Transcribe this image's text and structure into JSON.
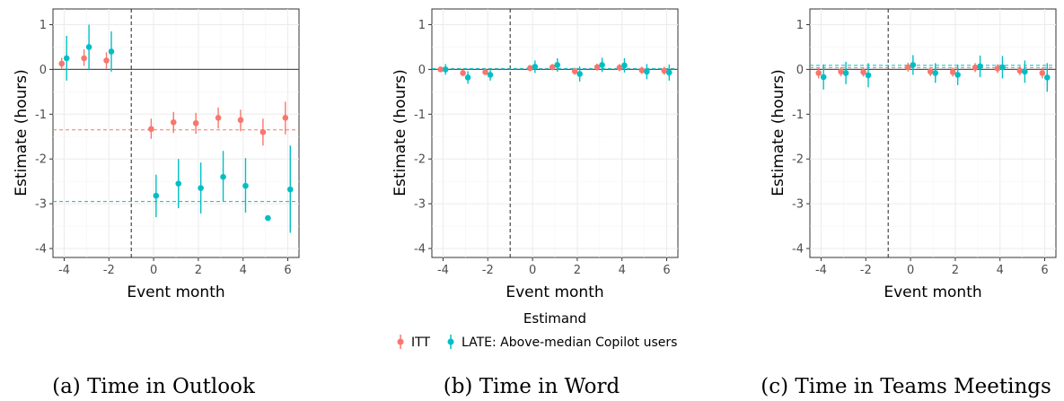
{
  "legend": {
    "title": "Estimand",
    "items": [
      {
        "label": "ITT",
        "color": "#F8766D"
      },
      {
        "label": "LATE: Above-median Copilot users",
        "color": "#00BFC4"
      }
    ]
  },
  "chart_data": [
    {
      "type": "scatter",
      "subtype": "event-study with 95% CI error bars",
      "caption": "(a) Time in Outlook",
      "xlabel": "Event month",
      "ylabel": "Estimate (hours)",
      "xlim": [
        -4.5,
        6.5
      ],
      "ylim": [
        -4.2,
        1.35
      ],
      "xticks": [
        -4,
        -2,
        0,
        2,
        4,
        6
      ],
      "xtick_labels": [
        "-4",
        "-2",
        "0",
        "2",
        "4",
        "6"
      ],
      "yticks": [
        1,
        0,
        -1,
        -2,
        -3,
        -4
      ],
      "ytick_labels": [
        "1",
        "0",
        "-1",
        "-2",
        "-3",
        "-4"
      ],
      "grid": true,
      "treatment_line_x": -1,
      "series": [
        {
          "name": "ITT",
          "color": "#F8766D",
          "mean_line": -1.35,
          "x": [
            -4,
            -3,
            -2,
            0,
            1,
            2,
            3,
            4,
            5,
            6
          ],
          "y": [
            0.13,
            0.25,
            0.2,
            -1.33,
            -1.18,
            -1.2,
            -1.08,
            -1.13,
            -1.4,
            -1.08
          ],
          "lo": [
            0.0,
            0.08,
            0.02,
            -1.55,
            -1.42,
            -1.44,
            -1.32,
            -1.38,
            -1.7,
            -1.45
          ],
          "hi": [
            0.26,
            0.45,
            0.38,
            -1.1,
            -0.95,
            -0.97,
            -0.85,
            -0.9,
            -1.1,
            -0.72
          ]
        },
        {
          "name": "LATE: Above-median Copilot users",
          "color": "#00BFC4",
          "mean_line": -2.95,
          "x": [
            -4,
            -3,
            -2,
            0,
            1,
            2,
            3,
            4,
            5,
            6
          ],
          "y": [
            0.25,
            0.5,
            0.4,
            -2.82,
            -2.55,
            -2.65,
            -2.4,
            -2.6,
            -3.32,
            -2.68
          ],
          "lo": [
            -0.25,
            0.0,
            -0.05,
            -3.3,
            -3.1,
            -3.22,
            -2.95,
            -3.2,
            -3.32,
            -3.65
          ],
          "hi": [
            0.75,
            1.0,
            0.85,
            -2.35,
            -2.0,
            -2.08,
            -1.82,
            -1.98,
            -3.32,
            -1.7
          ]
        }
      ]
    },
    {
      "type": "scatter",
      "subtype": "event-study with 95% CI error bars",
      "caption": "(b) Time in Word",
      "xlabel": "Event month",
      "ylabel": "Estimate (hours)",
      "xlim": [
        -4.5,
        6.5
      ],
      "ylim": [
        -4.2,
        1.35
      ],
      "xticks": [
        -4,
        -2,
        0,
        2,
        4,
        6
      ],
      "xtick_labels": [
        "-4",
        "-2",
        "0",
        "2",
        "4",
        "6"
      ],
      "yticks": [
        1,
        0,
        -1,
        -2,
        -3,
        -4
      ],
      "ytick_labels": [
        "1",
        "0",
        "-1",
        "-2",
        "-3",
        "-4"
      ],
      "grid": true,
      "treatment_line_x": -1,
      "series": [
        {
          "name": "ITT",
          "color": "#F8766D",
          "mean_line": 0.01,
          "x": [
            -4,
            -3,
            -2,
            0,
            1,
            2,
            3,
            4,
            5,
            6
          ],
          "y": [
            0.0,
            -0.08,
            -0.06,
            0.03,
            0.05,
            -0.04,
            0.05,
            0.04,
            -0.02,
            -0.03
          ],
          "lo": [
            -0.05,
            -0.15,
            -0.12,
            -0.04,
            -0.02,
            -0.12,
            -0.03,
            -0.04,
            -0.1,
            -0.12
          ],
          "hi": [
            0.05,
            -0.01,
            0.0,
            0.1,
            0.12,
            0.04,
            0.13,
            0.12,
            0.06,
            0.06
          ]
        },
        {
          "name": "LATE: Above-median Copilot users",
          "color": "#00BFC4",
          "mean_line": 0.02,
          "x": [
            -4,
            -3,
            -2,
            0,
            1,
            2,
            3,
            4,
            5,
            6
          ],
          "y": [
            0.0,
            -0.18,
            -0.12,
            0.06,
            0.1,
            -0.1,
            0.1,
            0.09,
            -0.05,
            -0.07
          ],
          "lo": [
            -0.12,
            -0.32,
            -0.25,
            -0.08,
            -0.05,
            -0.27,
            -0.06,
            -0.07,
            -0.22,
            -0.25
          ],
          "hi": [
            0.12,
            -0.04,
            0.01,
            0.2,
            0.25,
            0.07,
            0.26,
            0.25,
            0.12,
            0.11
          ]
        }
      ]
    },
    {
      "type": "scatter",
      "subtype": "event-study with 95% CI error bars",
      "caption": "(c) Time in Teams Meetings",
      "xlabel": "Event month",
      "ylabel": "Estimate (hours)",
      "xlim": [
        -4.5,
        6.5
      ],
      "ylim": [
        -4.2,
        1.35
      ],
      "xticks": [
        -4,
        -2,
        0,
        2,
        4,
        6
      ],
      "xtick_labels": [
        "-4",
        "-2",
        "0",
        "2",
        "4",
        "6"
      ],
      "yticks": [
        1,
        0,
        -1,
        -2,
        -3,
        -4
      ],
      "ytick_labels": [
        "1",
        "0",
        "-1",
        "-2",
        "-3",
        "-4"
      ],
      "grid": true,
      "treatment_line_x": -1,
      "series": [
        {
          "name": "ITT",
          "color": "#F8766D",
          "mean_line": 0.04,
          "x": [
            -4,
            -3,
            -2,
            0,
            1,
            2,
            3,
            4,
            5,
            6
          ],
          "y": [
            -0.08,
            -0.05,
            -0.06,
            0.05,
            -0.05,
            -0.06,
            0.04,
            0.02,
            -0.03,
            -0.08
          ],
          "lo": [
            -0.2,
            -0.15,
            -0.16,
            -0.05,
            -0.15,
            -0.16,
            -0.06,
            -0.08,
            -0.13,
            -0.2
          ],
          "hi": [
            0.04,
            0.05,
            0.04,
            0.15,
            0.05,
            0.04,
            0.14,
            0.12,
            0.07,
            0.04
          ]
        },
        {
          "name": "LATE: Above-median Copilot users",
          "color": "#00BFC4",
          "mean_line": 0.09,
          "x": [
            -4,
            -3,
            -2,
            0,
            1,
            2,
            3,
            4,
            5,
            6
          ],
          "y": [
            -0.17,
            -0.08,
            -0.13,
            0.1,
            -0.08,
            -0.12,
            0.07,
            0.05,
            -0.05,
            -0.18
          ],
          "lo": [
            -0.45,
            -0.33,
            -0.4,
            -0.12,
            -0.3,
            -0.35,
            -0.17,
            -0.2,
            -0.3,
            -0.5
          ],
          "hi": [
            0.11,
            0.17,
            0.14,
            0.32,
            0.14,
            0.11,
            0.31,
            0.3,
            0.2,
            0.14
          ]
        }
      ]
    }
  ]
}
